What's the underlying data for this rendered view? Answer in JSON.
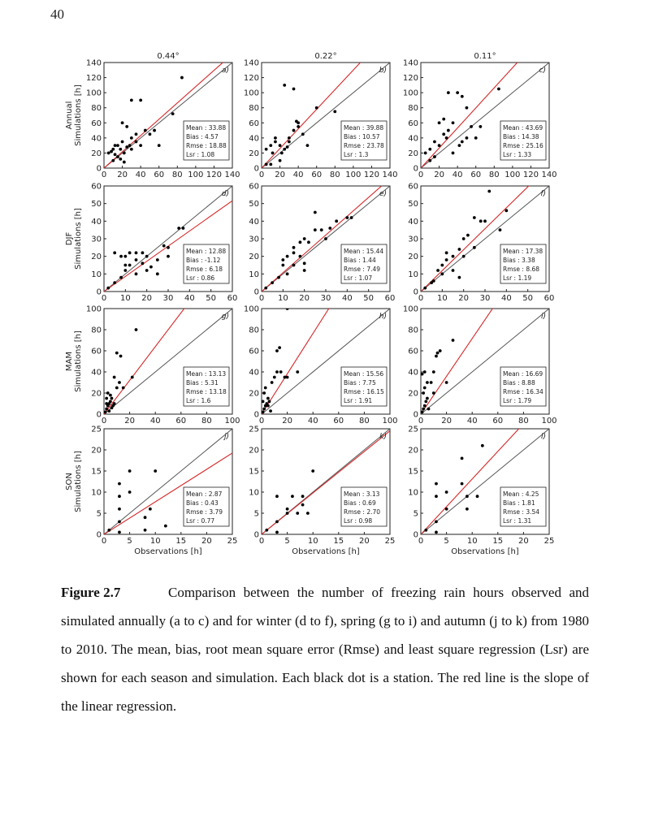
{
  "page_number": "40",
  "caption": {
    "label": "Figure 2.7",
    "text": "Comparison between the number of freezing rain hours observed and simulated annually (a to c) and for winter (d to f), spring (g to i) and autumn (j to k) from 1980 to 2010. The mean, bias, root mean square error (Rmse) and least square regression (Lsr) are shown for each season and simulation. Each black dot is a station. The red line is the slope of the linear regression."
  },
  "chart_data": [
    {
      "type": "scatter",
      "title": "0.44°",
      "panel_label": "a)",
      "ylabel": [
        "Annual",
        "Simulations [h]"
      ],
      "stats": [
        "Mean : 33.88",
        "Bias : 4.57",
        "Rmse : 18.88",
        "Lsr : 1.08"
      ],
      "xlim": [
        0,
        140
      ],
      "ylim": [
        0,
        140
      ],
      "xticks": [
        0,
        20,
        40,
        60,
        80,
        100,
        120,
        140
      ],
      "yticks": [
        0,
        20,
        40,
        60,
        80,
        100,
        120,
        140
      ],
      "color": "#000000",
      "regression": {
        "slope": 1.08,
        "color": "#d62728"
      },
      "identity_color": "#555555",
      "x": [
        5,
        8,
        10,
        12,
        15,
        18,
        20,
        22,
        25,
        15,
        30,
        35,
        28,
        20,
        25,
        30,
        40,
        45,
        50,
        40,
        60,
        85,
        75,
        35,
        10,
        18,
        22,
        30,
        55,
        12
      ],
      "y": [
        20,
        22,
        25,
        18,
        30,
        25,
        35,
        20,
        28,
        15,
        40,
        45,
        30,
        60,
        55,
        90,
        90,
        50,
        45,
        30,
        30,
        120,
        72,
        35,
        10,
        12,
        8,
        25,
        50,
        30
      ]
    },
    {
      "type": "scatter",
      "title": "0.22°",
      "panel_label": "b)",
      "stats": [
        "Mean : 39.88",
        "Bias : 10.57",
        "Rmse : 23.78",
        "Lsr : 1.3"
      ],
      "xlim": [
        0,
        140
      ],
      "ylim": [
        0,
        140
      ],
      "xticks": [
        0,
        20,
        40,
        60,
        80,
        100,
        120,
        140
      ],
      "yticks": [
        0,
        20,
        40,
        60,
        80,
        100,
        120,
        140
      ],
      "color": "#000000",
      "regression": {
        "slope": 1.3,
        "color": "#d62728"
      },
      "identity_color": "#555555",
      "x": [
        5,
        10,
        15,
        20,
        25,
        12,
        30,
        35,
        40,
        45,
        25,
        35,
        60,
        80,
        50,
        30,
        20,
        10,
        15,
        40,
        38,
        22,
        28,
        5
      ],
      "y": [
        25,
        30,
        35,
        30,
        25,
        20,
        40,
        50,
        60,
        45,
        110,
        105,
        80,
        75,
        30,
        35,
        10,
        5,
        40,
        55,
        62,
        20,
        28,
        5
      ]
    },
    {
      "type": "scatter",
      "title": "0.11°",
      "panel_label": "c)",
      "stats": [
        "Mean : 43.69",
        "Bias : 14.38",
        "Rmse : 25.16",
        "Lsr : 1.33"
      ],
      "xlim": [
        0,
        140
      ],
      "ylim": [
        0,
        140
      ],
      "xticks": [
        0,
        20,
        40,
        60,
        80,
        100,
        120,
        140
      ],
      "yticks": [
        0,
        20,
        40,
        60,
        80,
        100,
        120,
        140
      ],
      "color": "#000000",
      "regression": {
        "slope": 1.33,
        "color": "#d62728"
      },
      "identity_color": "#555555",
      "x": [
        5,
        10,
        15,
        20,
        25,
        30,
        35,
        40,
        30,
        45,
        50,
        55,
        65,
        85,
        20,
        25,
        45,
        50,
        35,
        10,
        15,
        60,
        42,
        28
      ],
      "y": [
        20,
        25,
        35,
        30,
        45,
        50,
        60,
        100,
        100,
        95,
        80,
        55,
        55,
        105,
        60,
        65,
        35,
        40,
        20,
        10,
        15,
        40,
        30,
        40
      ]
    },
    {
      "type": "scatter",
      "panel_label": "d)",
      "ylabel": [
        "DJF",
        "Simulations [h]"
      ],
      "stats": [
        "Mean : 12.88",
        "Bias : -1.12",
        "Rmse : 6.18",
        "Lsr : 0.86"
      ],
      "xlim": [
        0,
        60
      ],
      "ylim": [
        0,
        60
      ],
      "xticks": [
        0,
        10,
        20,
        30,
        40,
        50,
        60
      ],
      "yticks": [
        0,
        10,
        20,
        30,
        40,
        50,
        60
      ],
      "color": "#000000",
      "regression": {
        "slope": 0.86,
        "color": "#d62728"
      },
      "identity_color": "#555555",
      "x": [
        2,
        5,
        8,
        10,
        12,
        15,
        18,
        20,
        8,
        10,
        12,
        15,
        18,
        22,
        25,
        28,
        30,
        35,
        37,
        25,
        20,
        15,
        10,
        5,
        30
      ],
      "y": [
        2,
        5,
        8,
        12,
        15,
        18,
        16,
        20,
        20,
        20,
        22,
        22,
        22,
        14,
        18,
        26,
        25,
        36,
        36,
        10,
        12,
        10,
        15,
        22,
        20
      ]
    },
    {
      "type": "scatter",
      "panel_label": "e)",
      "stats": [
        "Mean : 15.44",
        "Bias : 1.44",
        "Rmse : 7.49",
        "Lsr : 1.07"
      ],
      "xlim": [
        0,
        60
      ],
      "ylim": [
        0,
        60
      ],
      "xticks": [
        0,
        10,
        20,
        30,
        40,
        50,
        60
      ],
      "yticks": [
        0,
        10,
        20,
        30,
        40,
        50,
        60
      ],
      "color": "#000000",
      "regression": {
        "slope": 1.07,
        "color": "#d62728"
      },
      "identity_color": "#555555",
      "x": [
        2,
        5,
        10,
        12,
        15,
        15,
        18,
        20,
        22,
        25,
        28,
        32,
        35,
        40,
        42,
        25,
        10,
        15,
        20,
        20,
        12,
        8,
        18,
        30
      ],
      "y": [
        2,
        5,
        15,
        20,
        25,
        22,
        20,
        30,
        28,
        35,
        35,
        36,
        40,
        42,
        42,
        45,
        18,
        15,
        12,
        16,
        10,
        8,
        28,
        30
      ]
    },
    {
      "type": "scatter",
      "panel_label": "f)",
      "stats": [
        "Mean : 17.38",
        "Bias : 3.38",
        "Rmse : 8.68",
        "Lsr : 1.19"
      ],
      "xlim": [
        0,
        60
      ],
      "ylim": [
        0,
        60
      ],
      "xticks": [
        0,
        10,
        20,
        30,
        40,
        50,
        60
      ],
      "yticks": [
        0,
        10,
        20,
        30,
        40,
        50,
        60
      ],
      "color": "#000000",
      "regression": {
        "slope": 1.19,
        "color": "#d62728"
      },
      "identity_color": "#555555",
      "x": [
        2,
        5,
        8,
        10,
        12,
        15,
        18,
        20,
        22,
        25,
        28,
        30,
        32,
        37,
        40,
        20,
        15,
        10,
        6,
        18,
        25,
        12
      ],
      "y": [
        2,
        5,
        12,
        15,
        18,
        20,
        24,
        30,
        32,
        42,
        40,
        40,
        57,
        35,
        46,
        20,
        12,
        10,
        6,
        8,
        25,
        22
      ]
    },
    {
      "type": "scatter",
      "panel_label": "g)",
      "ylabel": [
        "MAM",
        "Simulations [h]"
      ],
      "stats": [
        "Mean : 13.13",
        "Bias : 5.31",
        "Rmse : 13.18",
        "Lsr : 1.6"
      ],
      "xlim": [
        0,
        100
      ],
      "ylim": [
        0,
        100
      ],
      "xticks": [
        0,
        20,
        40,
        60,
        80,
        100
      ],
      "yticks": [
        0,
        20,
        40,
        60,
        80,
        100
      ],
      "color": "#000000",
      "regression": {
        "slope": 1.6,
        "color": "#d62728"
      },
      "identity_color": "#555555",
      "x": [
        1,
        2,
        3,
        4,
        5,
        6,
        2,
        3,
        5,
        8,
        10,
        8,
        12,
        15,
        22,
        25,
        10,
        13,
        4,
        6,
        7,
        2
      ],
      "y": [
        2,
        5,
        8,
        10,
        12,
        15,
        15,
        20,
        18,
        10,
        25,
        35,
        30,
        25,
        35,
        80,
        58,
        55,
        3,
        6,
        8,
        10
      ]
    },
    {
      "type": "scatter",
      "panel_label": "h)",
      "stats": [
        "Mean : 15.56",
        "Bias : 7.75",
        "Rmse : 16.15",
        "Lsr : 1.91"
      ],
      "xlim": [
        0,
        100
      ],
      "ylim": [
        0,
        100
      ],
      "xticks": [
        0,
        20,
        40,
        60,
        80,
        100
      ],
      "yticks": [
        0,
        20,
        40,
        60,
        80,
        100
      ],
      "color": "#000000",
      "regression": {
        "slope": 1.91,
        "color": "#d62728"
      },
      "identity_color": "#555555",
      "x": [
        1,
        2,
        3,
        4,
        5,
        6,
        2,
        3,
        8,
        10,
        12,
        15,
        18,
        20,
        28,
        20,
        12,
        14,
        5,
        7,
        1
      ],
      "y": [
        2,
        5,
        8,
        10,
        15,
        12,
        20,
        25,
        30,
        35,
        40,
        40,
        35,
        35,
        40,
        100,
        60,
        63,
        8,
        3,
        12
      ]
    },
    {
      "type": "scatter",
      "panel_label": "i)",
      "stats": [
        "Mean : 16.69",
        "Bias : 8.88",
        "Rmse : 16.34",
        "Lsr : 1.79"
      ],
      "xlim": [
        0,
        100
      ],
      "ylim": [
        0,
        100
      ],
      "xticks": [
        0,
        20,
        40,
        60,
        80,
        100
      ],
      "yticks": [
        0,
        20,
        40,
        60,
        80,
        100
      ],
      "color": "#000000",
      "regression": {
        "slope": 1.79,
        "color": "#d62728"
      },
      "identity_color": "#555555",
      "x": [
        1,
        2,
        3,
        4,
        5,
        2,
        3,
        5,
        8,
        10,
        12,
        15,
        13,
        20,
        25,
        10,
        6,
        3,
        1
      ],
      "y": [
        2,
        5,
        8,
        12,
        15,
        20,
        25,
        30,
        30,
        40,
        55,
        60,
        58,
        30,
        70,
        20,
        5,
        40,
        38
      ]
    },
    {
      "type": "scatter",
      "panel_label": "j)",
      "ylabel": [
        "SON",
        "Simulations [h]"
      ],
      "xlabel": "Observations [h]",
      "stats": [
        "Mean : 2.87",
        "Bias : 0.43",
        "Rmse : 3.79",
        "Lsr : 0.77"
      ],
      "xlim": [
        0,
        25
      ],
      "ylim": [
        0,
        25
      ],
      "xticks": [
        0,
        5,
        10,
        15,
        20,
        25
      ],
      "yticks": [
        0,
        5,
        10,
        15,
        20,
        25
      ],
      "color": "#000000",
      "regression": {
        "slope": 0.77,
        "color": "#d62728"
      },
      "identity_color": "#555555",
      "x": [
        1,
        3,
        3,
        3,
        3,
        5,
        8,
        9,
        10,
        12,
        5,
        8,
        3
      ],
      "y": [
        1,
        3,
        6,
        9,
        12,
        15,
        1,
        6,
        15,
        2,
        10,
        4,
        0.5
      ]
    },
    {
      "type": "scatter",
      "panel_label": "k)",
      "xlabel": "Observations [h]",
      "stats": [
        "Mean : 3.13",
        "Bias : 0.69",
        "Rmse : 2.70",
        "Lsr : 0.98"
      ],
      "xlim": [
        0,
        25
      ],
      "ylim": [
        0,
        25
      ],
      "xticks": [
        0,
        5,
        10,
        15,
        20,
        25
      ],
      "yticks": [
        0,
        5,
        10,
        15,
        20,
        25
      ],
      "color": "#000000",
      "regression": {
        "slope": 0.98,
        "color": "#d62728"
      },
      "identity_color": "#555555",
      "x": [
        1,
        3,
        3,
        5,
        6,
        8,
        8,
        10,
        7,
        9,
        5,
        3
      ],
      "y": [
        1,
        3,
        9,
        6,
        9,
        9,
        7,
        15,
        5,
        5,
        5,
        0.5
      ]
    },
    {
      "type": "scatter",
      "panel_label": "l)",
      "xlabel": "Observations [h]",
      "stats": [
        "Mean : 4.25",
        "Bias : 1.81",
        "Rmse : 3.54",
        "Lsr : 1.31"
      ],
      "xlim": [
        0,
        25
      ],
      "ylim": [
        0,
        25
      ],
      "xticks": [
        0,
        5,
        10,
        15,
        20,
        25
      ],
      "yticks": [
        0,
        5,
        10,
        15,
        20,
        25
      ],
      "color": "#000000",
      "regression": {
        "slope": 1.31,
        "color": "#d62728"
      },
      "identity_color": "#555555",
      "x": [
        1,
        3,
        3,
        3,
        5,
        5,
        8,
        8,
        9,
        9,
        11,
        12,
        3
      ],
      "y": [
        1,
        3,
        12,
        9,
        6,
        10,
        12,
        18,
        6,
        9,
        9,
        21,
        0.5
      ]
    }
  ]
}
